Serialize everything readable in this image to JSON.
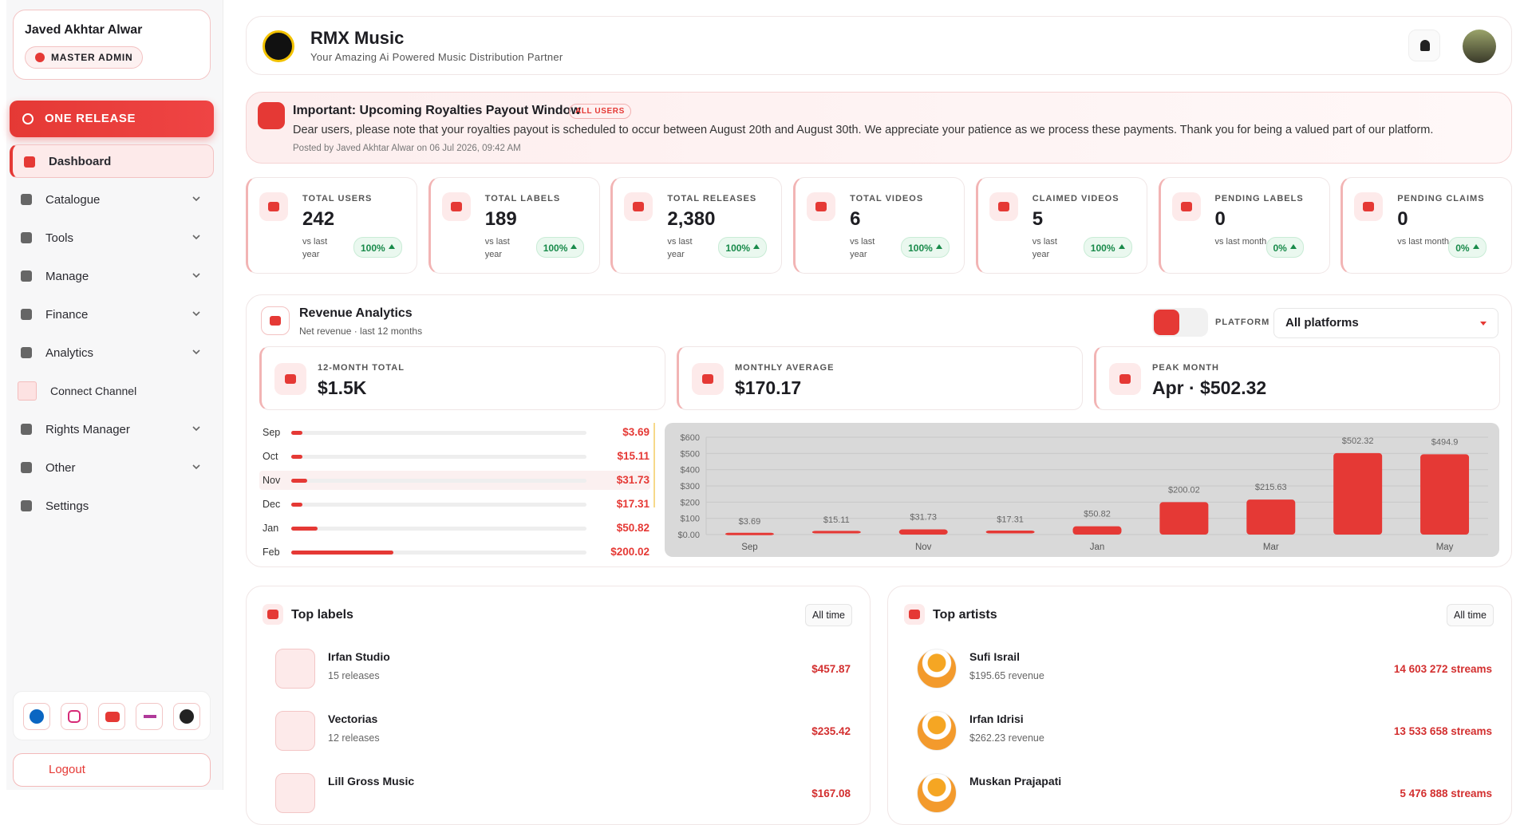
{
  "sidebar": {
    "user_name": "Javed Akhtar Alwar",
    "role": "MASTER ADMIN",
    "primary_action": "ONE RELEASE",
    "nav": [
      "Dashboard",
      "Catalogue",
      "Tools",
      "Manage",
      "Finance",
      "Analytics",
      "Connect Channel",
      "Rights Manager",
      "Other",
      "Settings"
    ],
    "logout": "Logout"
  },
  "header": {
    "title": "RMX Music",
    "subtitle": "Your Amazing Ai Powered Music Distribution Partner"
  },
  "announcement": {
    "title": "Important: Upcoming Royalties Payout Window",
    "badge": "ALL USERS",
    "message": "Dear users, please note that your royalties payout is scheduled to occur between August 20th and August 30th. We appreciate your patience as we process these payments. Thank you for being a valued part of our platform.",
    "posted": "Posted by Javed Akhtar Alwar on 06 Jul 2026, 09:42 AM"
  },
  "stats": [
    {
      "label": "TOTAL USERS",
      "value": "242",
      "period": "vs last year",
      "change": "100%"
    },
    {
      "label": "TOTAL LABELS",
      "value": "189",
      "period": "vs last year",
      "change": "100%"
    },
    {
      "label": "TOTAL RELEASES",
      "value": "2,380",
      "period": "vs last year",
      "change": "100%"
    },
    {
      "label": "TOTAL VIDEOS",
      "value": "6",
      "period": "vs last year",
      "change": "100%"
    },
    {
      "label": "CLAIMED VIDEOS",
      "value": "5",
      "period": "vs last year",
      "change": "100%"
    },
    {
      "label": "PENDING LABELS",
      "value": "0",
      "period": "vs last month",
      "change": "0%"
    },
    {
      "label": "PENDING CLAIMS",
      "value": "0",
      "period": "vs last month",
      "change": "0%"
    }
  ],
  "revenue": {
    "title": "Revenue Analytics",
    "subtitle": "Net revenue · last 12 months",
    "platform_label": "PLATFORM",
    "platform": "All platforms",
    "summary": [
      {
        "label": "12-MONTH TOTAL",
        "value": "$1.5K"
      },
      {
        "label": "MONTHLY AVERAGE",
        "value": "$170.17"
      },
      {
        "label": "PEAK MONTH",
        "value": "Apr · $502.32"
      }
    ],
    "months": [
      {
        "month": "Sep",
        "amount": "$3.69"
      },
      {
        "month": "Oct",
        "amount": "$15.11"
      },
      {
        "month": "Nov",
        "amount": "$31.73"
      },
      {
        "month": "Dec",
        "amount": "$17.31"
      },
      {
        "month": "Jan",
        "amount": "$50.82"
      },
      {
        "month": "Feb",
        "amount": "$200.02"
      }
    ],
    "chart": {
      "type": "bar",
      "color": "#e53935",
      "grid": true,
      "categories": [
        "Sep",
        null,
        "Nov",
        null,
        "Jan",
        null,
        "Mar",
        null,
        "May"
      ],
      "values": [
        3.69,
        15.11,
        31.73,
        17.31,
        50.82,
        200.02,
        215.63,
        502.32,
        494.9
      ],
      "value_labels": [
        "$3.69",
        "$15.11",
        "$31.73",
        "$17.31",
        "$50.82",
        "$200.02",
        "$215.63",
        "$502.32",
        "$494.9"
      ],
      "ylim": [
        0,
        600
      ],
      "yticks": [
        {
          "value": 0,
          "label": "$0.00"
        },
        {
          "value": 100,
          "label": "$100"
        },
        {
          "value": 200,
          "label": "$200"
        },
        {
          "value": 300,
          "label": "$300"
        },
        {
          "value": 400,
          "label": "$400"
        },
        {
          "value": 500,
          "label": "$500"
        },
        {
          "value": 600,
          "label": "$600"
        }
      ]
    }
  },
  "top_labels": {
    "title": "Top labels",
    "filter": "All time",
    "items": [
      {
        "name": "Irfan Studio",
        "detail": "15 releases",
        "amount": "$457.87"
      },
      {
        "name": "Vectorias",
        "detail": "12 releases",
        "amount": "$235.42"
      },
      {
        "name": "Lill Gross Music",
        "detail": "",
        "amount": "$167.08"
      }
    ]
  },
  "top_artists": {
    "title": "Top artists",
    "filter": "All time",
    "items": [
      {
        "name": "Sufi Israil",
        "detail": "$195.65 revenue",
        "amount": "14 603 272 streams"
      },
      {
        "name": "Irfan Idrisi",
        "detail": "$262.23 revenue",
        "amount": "13 533 658 streams"
      },
      {
        "name": "Muskan Prajapati",
        "detail": "",
        "amount": "5 476 888 streams"
      }
    ]
  }
}
